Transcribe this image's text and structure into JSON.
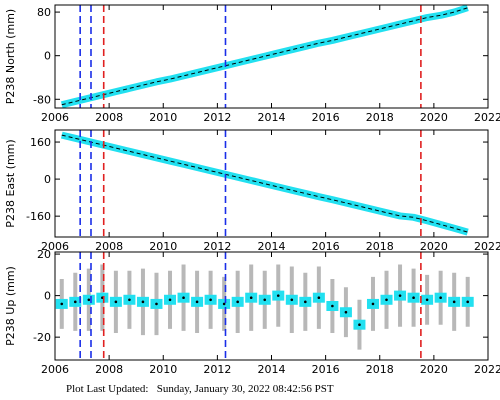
{
  "chart_data": [
    {
      "type": "line",
      "ylabel": "P238 North (mm)",
      "color": "#22e0f0",
      "x": [
        2006.25,
        2006.75,
        2007.25,
        2007.75,
        2008.25,
        2008.75,
        2009.25,
        2009.75,
        2010.25,
        2010.75,
        2011.25,
        2011.75,
        2012.25,
        2012.75,
        2013.25,
        2013.75,
        2014.25,
        2014.75,
        2015.25,
        2015.75,
        2016.25,
        2016.75,
        2017.25,
        2017.75,
        2018.25,
        2018.75,
        2019.25,
        2019.75,
        2020.25,
        2020.75,
        2021.25
      ],
      "values": [
        -90,
        -84,
        -78,
        -72,
        -66,
        -60,
        -54,
        -48,
        -43,
        -37,
        -31,
        -25,
        -19,
        -13,
        -7,
        -1,
        5,
        11,
        17,
        23,
        28,
        34,
        40,
        46,
        52,
        58,
        64,
        70,
        74,
        80,
        88
      ],
      "xlim": [
        2006,
        2022
      ],
      "xticks": [
        2006,
        2008,
        2010,
        2012,
        2014,
        2016,
        2018,
        2020,
        2022
      ],
      "ylim": [
        -96,
        93
      ],
      "yticks": [
        -80,
        0,
        80
      ],
      "vlines": [
        {
          "x": 2006.93,
          "color": "#1a2ee8"
        },
        {
          "x": 2007.33,
          "color": "#1a2ee8"
        },
        {
          "x": 2007.8,
          "color": "#e02020"
        },
        {
          "x": 2012.3,
          "color": "#1a2ee8"
        },
        {
          "x": 2019.52,
          "color": "#e02020"
        }
      ]
    },
    {
      "type": "line",
      "ylabel": "P238 East (mm)",
      "color": "#22e0f0",
      "x": [
        2006.25,
        2006.75,
        2007.25,
        2007.75,
        2008.25,
        2008.75,
        2009.25,
        2009.75,
        2010.25,
        2010.75,
        2011.25,
        2011.75,
        2012.25,
        2012.75,
        2013.25,
        2013.75,
        2014.25,
        2014.75,
        2015.25,
        2015.75,
        2016.25,
        2016.75,
        2017.25,
        2017.75,
        2018.25,
        2018.75,
        2019.25,
        2019.75,
        2020.25,
        2020.75,
        2021.25
      ],
      "values": [
        190,
        176,
        162,
        148,
        134,
        120,
        106,
        92,
        78,
        64,
        50,
        36,
        22,
        8,
        -6,
        -20,
        -34,
        -48,
        -62,
        -76,
        -89,
        -103,
        -117,
        -131,
        -145,
        -159,
        -165,
        -180,
        -196,
        -212,
        -229
      ],
      "xlim": [
        2006,
        2022
      ],
      "xticks": [
        2006,
        2008,
        2010,
        2012,
        2014,
        2016,
        2018,
        2020,
        2022
      ],
      "ylim": [
        -250,
        212
      ],
      "yticks": [
        -160,
        0,
        160
      ],
      "vlines": [
        {
          "x": 2006.93,
          "color": "#1a2ee8"
        },
        {
          "x": 2007.33,
          "color": "#1a2ee8"
        },
        {
          "x": 2007.8,
          "color": "#e02020"
        },
        {
          "x": 2012.3,
          "color": "#1a2ee8"
        },
        {
          "x": 2019.52,
          "color": "#e02020"
        }
      ]
    },
    {
      "type": "scatter",
      "ylabel": "P238 Up (mm)",
      "color": "#22e0f0",
      "error_color": "#b8b8b8",
      "x": [
        2006.25,
        2006.75,
        2007.25,
        2007.75,
        2008.25,
        2008.75,
        2009.25,
        2009.75,
        2010.25,
        2010.75,
        2011.25,
        2011.75,
        2012.25,
        2012.75,
        2013.25,
        2013.75,
        2014.25,
        2014.75,
        2015.25,
        2015.75,
        2016.25,
        2016.75,
        2017.25,
        2017.75,
        2018.25,
        2018.75,
        2019.25,
        2019.75,
        2020.25,
        2020.75,
        2021.25
      ],
      "values": [
        -4,
        -3,
        -2,
        -1,
        -3,
        -2,
        -3,
        -4,
        -2,
        -1,
        -3,
        -2,
        -4,
        -3,
        -1,
        -2,
        0,
        -2,
        -3,
        -1,
        -5,
        -8,
        -14,
        -4,
        -2,
        0,
        -1,
        -2,
        -1,
        -3,
        -3
      ],
      "errors": [
        12,
        14,
        15,
        16,
        15,
        14,
        16,
        15,
        14,
        16,
        15,
        14,
        13,
        15,
        16,
        14,
        15,
        16,
        14,
        15,
        13,
        12,
        12,
        13,
        14,
        15,
        14,
        12,
        13,
        14,
        12
      ],
      "xlim": [
        2006,
        2022
      ],
      "xticks": [
        2006,
        2008,
        2010,
        2012,
        2014,
        2016,
        2018,
        2020,
        2022
      ],
      "ylim": [
        -31,
        21
      ],
      "yticks": [
        -20,
        0,
        20
      ],
      "vlines": [
        {
          "x": 2006.93,
          "color": "#1a2ee8"
        },
        {
          "x": 2007.33,
          "color": "#1a2ee8"
        },
        {
          "x": 2007.8,
          "color": "#e02020"
        },
        {
          "x": 2012.3,
          "color": "#1a2ee8"
        },
        {
          "x": 2019.52,
          "color": "#e02020"
        }
      ]
    }
  ],
  "footer": "Plot Last Updated:   Sunday, January 30, 2022 08:42:56 PST"
}
